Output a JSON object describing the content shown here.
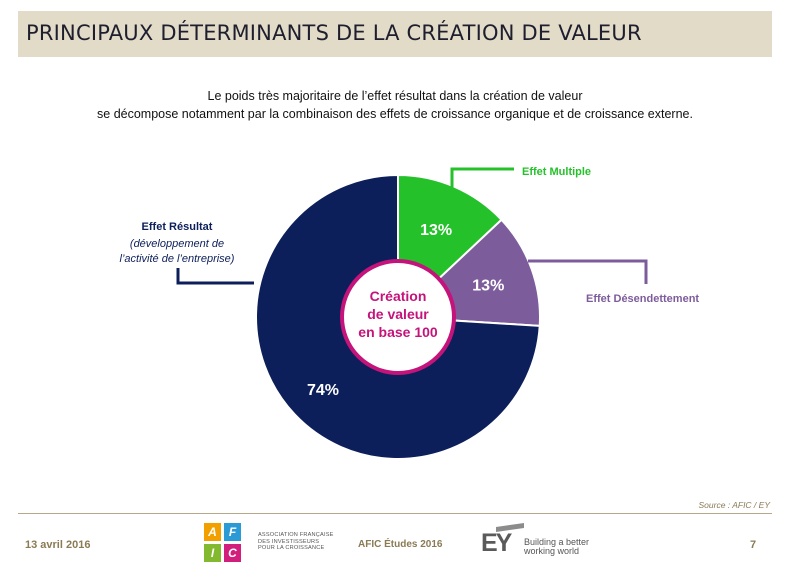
{
  "header": {
    "title": "PRINCIPAUX DÉTERMINANTS DE LA CRÉATION DE VALEUR"
  },
  "subtitle": {
    "line1": "Le poids très majoritaire de l’effet résultat dans la création de valeur",
    "line2": "se décompose notamment par la combinaison des effets de croissance organique et de croissance externe."
  },
  "chart_data": {
    "type": "pie",
    "center_label": [
      "Création",
      "de valeur",
      "en base 100"
    ],
    "slices": [
      {
        "name": "Effet Multiple",
        "value": 13,
        "label": "13%",
        "color": "#25c12a"
      },
      {
        "name": "Effet Désendettement",
        "value": 13,
        "label": "13%",
        "color": "#7d5c9c"
      },
      {
        "name": "Effet Résultat",
        "value": 74,
        "label": "74%",
        "color": "#0c1f5a"
      }
    ],
    "callouts": {
      "multiple": {
        "title": "Effet Multiple",
        "color": "#25c12a"
      },
      "desendettement": {
        "title": "Effet Désendettement",
        "color": "#7d5c9c"
      },
      "resultat": {
        "title": "Effet Résultat",
        "detail": [
          "(développement de",
          "l’activité de l’entreprise)"
        ],
        "color": "#0c1f5a"
      }
    },
    "accent_color": "#c4137a"
  },
  "source": "Source : AFIC / EY",
  "footer": {
    "date": "13 avril 2016",
    "afic_letters": [
      "A",
      "F",
      "I",
      "C"
    ],
    "afic_association": [
      "ASSOCIATION FRANÇAISE",
      "DES INVESTISSEURS",
      "POUR LA CROISSANCE"
    ],
    "afic_etudes": "AFIC Études 2016",
    "ey_logo": "EY",
    "ey_tagline": [
      "Building a better",
      "working world"
    ],
    "page_number": "7"
  }
}
